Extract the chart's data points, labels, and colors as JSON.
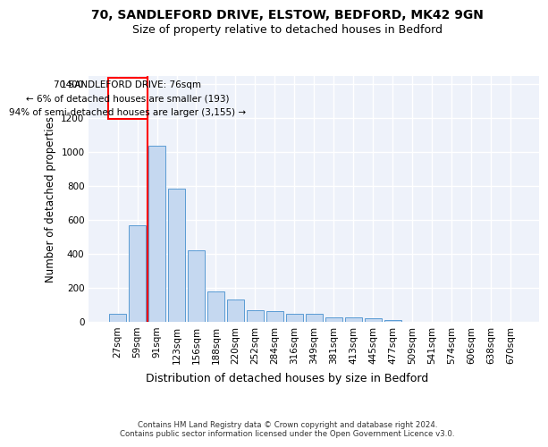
{
  "title_line1": "70, SANDLEFORD DRIVE, ELSTOW, BEDFORD, MK42 9GN",
  "title_line2": "Size of property relative to detached houses in Bedford",
  "xlabel": "Distribution of detached houses by size in Bedford",
  "ylabel": "Number of detached properties",
  "bar_color": "#c5d8f0",
  "bar_edge_color": "#5a9bd4",
  "categories": [
    "27sqm",
    "59sqm",
    "91sqm",
    "123sqm",
    "156sqm",
    "188sqm",
    "220sqm",
    "252sqm",
    "284sqm",
    "316sqm",
    "349sqm",
    "381sqm",
    "413sqm",
    "445sqm",
    "477sqm",
    "509sqm",
    "541sqm",
    "574sqm",
    "606sqm",
    "638sqm",
    "670sqm"
  ],
  "values": [
    50,
    570,
    1040,
    785,
    420,
    180,
    130,
    70,
    65,
    50,
    50,
    25,
    25,
    20,
    12,
    0,
    0,
    0,
    0,
    0,
    0
  ],
  "ylim": [
    0,
    1450
  ],
  "yticks": [
    0,
    200,
    400,
    600,
    800,
    1000,
    1200,
    1400
  ],
  "annotation_text": "70 SANDLEFORD DRIVE: 76sqm\n← 6% of detached houses are smaller (193)\n94% of semi-detached houses are larger (3,155) →",
  "vline_pos": 1.5,
  "background_color": "#eef2fa",
  "footer_text": "Contains HM Land Registry data © Crown copyright and database right 2024.\nContains public sector information licensed under the Open Government Licence v3.0.",
  "grid_color": "#ffffff",
  "title_fontsize": 10,
  "subtitle_fontsize": 9,
  "tick_fontsize": 7.5,
  "ylabel_fontsize": 8.5,
  "xlabel_fontsize": 9
}
